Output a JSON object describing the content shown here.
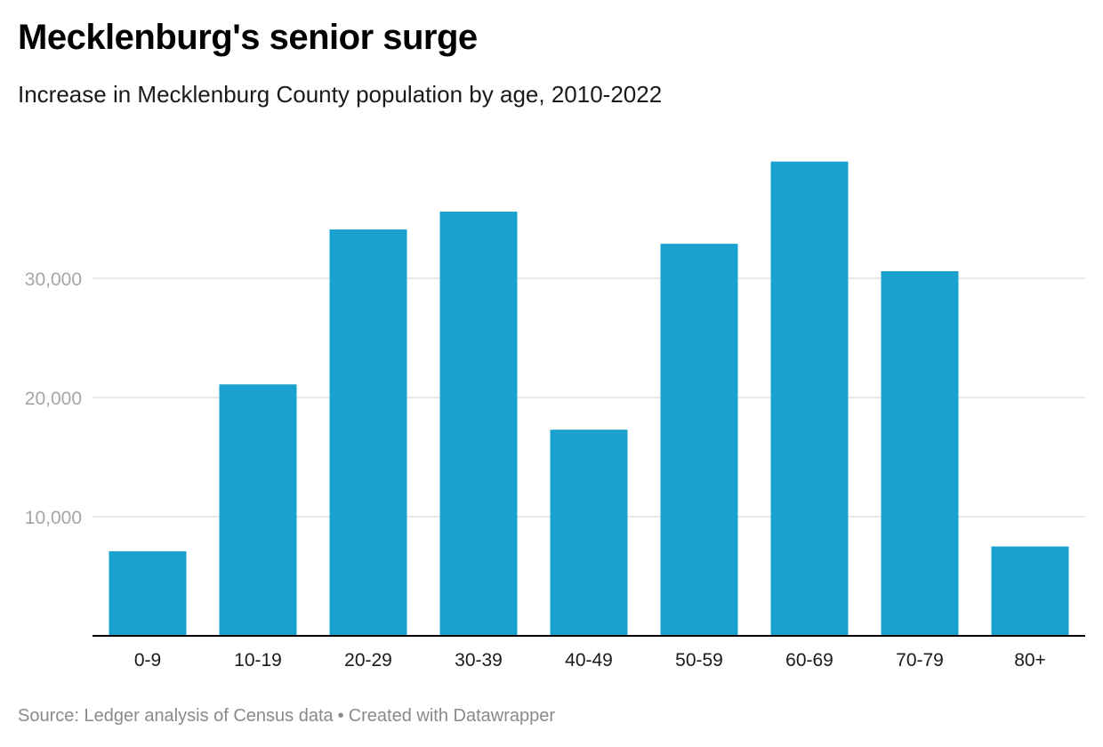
{
  "header": {
    "title": "Mecklenburg's senior surge",
    "subtitle": "Increase in Mecklenburg County population by age, 2010-2022"
  },
  "footer": {
    "source": "Source: Ledger analysis of Census data",
    "separator": "•",
    "credit": "Created with Datawrapper"
  },
  "colors": {
    "bar": "#1aa1cd",
    "grid": "#e0e0e0",
    "axis": "#000000",
    "tick_label": "#a6a6a6",
    "category_label": "#1a1a1a"
  },
  "chart_data": {
    "type": "bar",
    "title": "Mecklenburg's senior surge",
    "subtitle": "Increase in Mecklenburg County population by age, 2010-2022",
    "categories": [
      "0-9",
      "10-19",
      "20-29",
      "30-39",
      "40-49",
      "50-59",
      "60-69",
      "70-79",
      "80+"
    ],
    "values": [
      7100,
      21100,
      34100,
      35600,
      17300,
      32900,
      39800,
      30600,
      7500
    ],
    "ylim": [
      0,
      40000
    ],
    "yticks": [
      10000,
      20000,
      30000
    ],
    "ytick_labels": [
      "10,000",
      "20,000",
      "30,000"
    ],
    "grid": true,
    "legend": "none"
  }
}
